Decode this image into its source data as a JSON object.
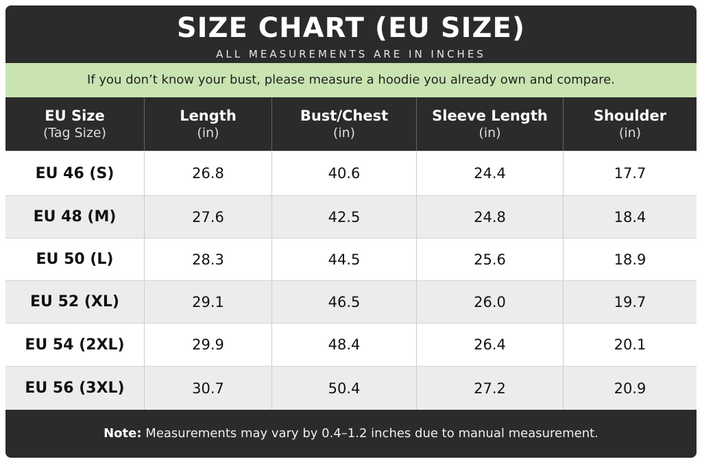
{
  "header": {
    "title": "SIZE CHART (EU SIZE)",
    "subtitle": "ALL MEASUREMENTS ARE IN INCHES"
  },
  "notice": "If you don’t know your bust, please measure a hoodie you already own and compare.",
  "table": {
    "columns": [
      {
        "label": "EU Size",
        "sub": "(Tag Size)"
      },
      {
        "label": "Length",
        "sub": "(in)"
      },
      {
        "label": "Bust/Chest",
        "sub": "(in)"
      },
      {
        "label": "Sleeve Length",
        "sub": "(in)"
      },
      {
        "label": "Shoulder",
        "sub": "(in)"
      }
    ],
    "rows": [
      [
        "EU 46 (S)",
        "26.8",
        "40.6",
        "24.4",
        "17.7"
      ],
      [
        "EU 48 (M)",
        "27.6",
        "42.5",
        "24.8",
        "18.4"
      ],
      [
        "EU 50 (L)",
        "28.3",
        "44.5",
        "25.6",
        "18.9"
      ],
      [
        "EU 52 (XL)",
        "29.1",
        "46.5",
        "26.0",
        "19.7"
      ],
      [
        "EU 54 (2XL)",
        "29.9",
        "48.4",
        "26.4",
        "20.1"
      ],
      [
        "EU 56 (3XL)",
        "30.7",
        "50.4",
        "27.2",
        "20.9"
      ]
    ]
  },
  "footer": {
    "label": "Note:",
    "text": "Measurements may vary by 0.4–1.2 inches due to manual measurement."
  }
}
